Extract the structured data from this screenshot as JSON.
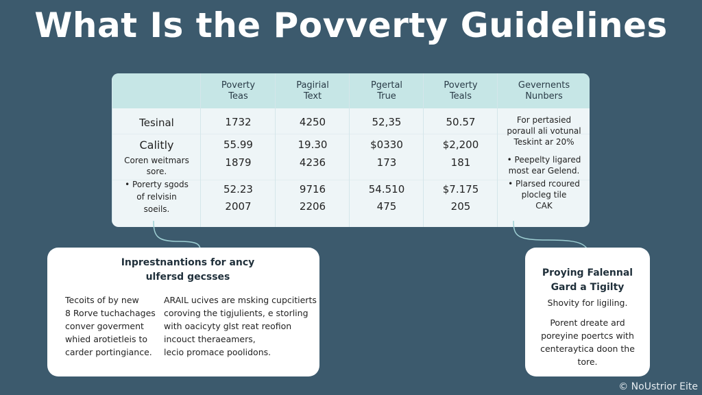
{
  "title": "What Is the Povverty Guidelines",
  "table": {
    "headers": [
      "",
      "Poverty\nTeas",
      "Pagirial\nText",
      "Pgertal\nTrue",
      "Poverty\nTeals",
      "Gevernents\nNunbers"
    ],
    "row_labels": [
      "Tesinal",
      "Calitly",
      "Coren weitmars\nsore.",
      "• Porerty sgods\nof relvisin\nsoeils."
    ],
    "columns": [
      [
        "1732",
        "55.99",
        "1879",
        "52.23",
        "2007"
      ],
      [
        "4250",
        "19.30",
        "4236",
        "9716",
        "2206"
      ],
      [
        "52,35",
        "$0330",
        "173",
        "54.510",
        "475"
      ],
      [
        "50.57",
        "$2,200",
        "181",
        "$7.175",
        "205"
      ]
    ],
    "notes": [
      "For pertasied\nporaull ali votunal\nTeskint ar 20%",
      "• Peepelty ligared\nmost ear Gelend.",
      "• Plarsed rcoured\nplocleg tile\nCAK"
    ]
  },
  "left_callout": {
    "title": "Inprestnantions for ancy\nulfersd gecsses",
    "col1": "Tecoits of by new\n8 Rorve tuchachages\nconver goverment\nwhied arotietleis to\ncarder portingiance.",
    "col2": "ARAIL ucives are msking cupcitierts\ncoroving the tigjulients, e storling\nwith oacicyty glst reat reofion\nincouct theraeamers,\nlecio promace poolidons."
  },
  "right_callout": {
    "title": "Proying Falennal\nGard a Tigilty",
    "subtitle": "Shovity for ligiling.",
    "body": "Porent dreate ard\nporeyine poertcs with\ncenteraytica doon the\ntore."
  },
  "footer": "© NoUstrior Eite",
  "colors": {
    "background": "#3c5a6d",
    "header_row": "#c6e6e6",
    "table_body": "#eef5f7",
    "connector": "#9fd0d4"
  }
}
